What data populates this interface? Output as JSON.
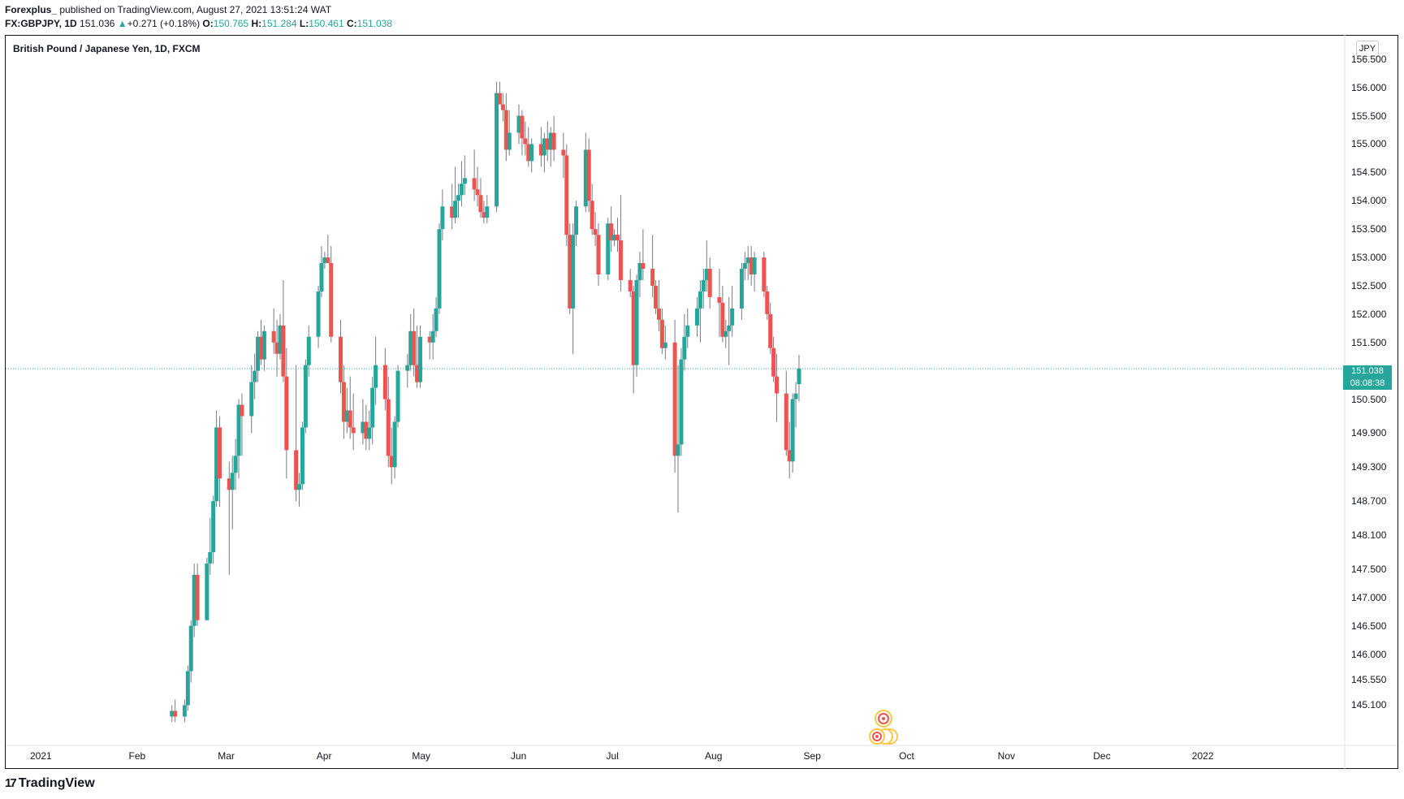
{
  "header": {
    "author": "Forexplus_",
    "published": "published on TradingView.com, August 27, 2021 13:51:24 WAT",
    "symbol": "FX:GBPJPY, 1D",
    "last": "151.036",
    "change_arrow": "▲",
    "change": "+0.271 (+0.18%)",
    "o_label": "O:",
    "o_value": "150.765",
    "h_label": "H:",
    "h_value": "151.284",
    "l_label": "L:",
    "l_value": "150.461",
    "c_label": "C:",
    "c_value": "151.038"
  },
  "currency_button": "JPY",
  "price_tag": {
    "price": "151.038",
    "countdown": "08:08:38"
  },
  "footer": {
    "logo_mark": "17",
    "brand": "TradingView"
  },
  "colors": {
    "up": "#26a69a",
    "down": "#ef5350",
    "wick": "#787b86",
    "price_line": "#26a69a"
  },
  "chart_data": {
    "type": "candlestick",
    "title": "British Pound / Japanese Yen, 1D, FXCM",
    "y_axis_labels": [
      "156.500",
      "156.000",
      "155.500",
      "155.000",
      "154.500",
      "154.000",
      "153.500",
      "153.000",
      "152.500",
      "152.000",
      "151.500",
      "150.500",
      "149.900",
      "149.300",
      "148.700",
      "148.100",
      "147.500",
      "147.000",
      "146.500",
      "146.000",
      "145.550",
      "145.100"
    ],
    "ylim": [
      145.0,
      156.6
    ],
    "x_axis_labels": [
      "2021",
      "Feb",
      "Mar",
      "Apr",
      "May",
      "Jun",
      "Jul",
      "Aug",
      "Sep",
      "Oct",
      "Nov",
      "Dec",
      "2022"
    ],
    "current_price": 151.038,
    "grid": false,
    "candles": [
      [
        "2021-02-11",
        144.9,
        145.1,
        144.8,
        145.0
      ],
      [
        "2021-02-12",
        145.0,
        145.2,
        144.8,
        144.9
      ],
      [
        "2021-02-15",
        144.9,
        145.2,
        144.8,
        145.1
      ],
      [
        "2021-02-16",
        145.1,
        145.8,
        145.0,
        145.7
      ],
      [
        "2021-02-17",
        145.7,
        146.6,
        145.5,
        146.5
      ],
      [
        "2021-02-18",
        146.5,
        147.6,
        146.3,
        147.4
      ],
      [
        "2021-02-19",
        147.4,
        147.6,
        146.5,
        146.6
      ],
      [
        "2021-02-22",
        146.6,
        147.7,
        146.6,
        147.6
      ],
      [
        "2021-02-23",
        147.6,
        148.4,
        147.4,
        147.8
      ],
      [
        "2021-02-24",
        147.8,
        148.8,
        147.6,
        148.7
      ],
      [
        "2021-02-25",
        148.7,
        150.3,
        148.6,
        150.0
      ],
      [
        "2021-02-26",
        150.0,
        150.2,
        148.6,
        149.1
      ],
      [
        "2021-03-01",
        149.1,
        149.4,
        147.4,
        148.9
      ],
      [
        "2021-03-02",
        148.9,
        149.5,
        148.2,
        149.2
      ],
      [
        "2021-03-03",
        149.2,
        149.8,
        148.9,
        149.5
      ],
      [
        "2021-03-04",
        149.5,
        150.5,
        149.1,
        150.4
      ],
      [
        "2021-03-05",
        150.4,
        150.6,
        149.5,
        150.2
      ],
      [
        "2021-03-08",
        150.2,
        151.1,
        149.9,
        150.8
      ],
      [
        "2021-03-09",
        150.8,
        151.3,
        150.5,
        151.0
      ],
      [
        "2021-03-10",
        151.0,
        151.7,
        150.8,
        151.6
      ],
      [
        "2021-03-11",
        151.6,
        151.9,
        151.1,
        151.2
      ],
      [
        "2021-03-12",
        151.2,
        151.8,
        151.0,
        151.7
      ],
      [
        "2021-03-15",
        151.7,
        152.1,
        151.3,
        151.5
      ],
      [
        "2021-03-16",
        151.5,
        151.9,
        150.9,
        151.3
      ],
      [
        "2021-03-17",
        151.3,
        152.0,
        151.2,
        151.8
      ],
      [
        "2021-03-18",
        151.8,
        152.6,
        150.8,
        150.9
      ],
      [
        "2021-03-19",
        150.9,
        151.4,
        149.1,
        149.6
      ],
      [
        "2021-03-22",
        149.6,
        151.1,
        148.7,
        148.9
      ],
      [
        "2021-03-23",
        148.9,
        149.2,
        148.6,
        149.0
      ],
      [
        "2021-03-24",
        149.0,
        150.1,
        148.9,
        150.0
      ],
      [
        "2021-03-25",
        150.0,
        151.2,
        149.9,
        151.1
      ],
      [
        "2021-03-26",
        151.1,
        151.8,
        150.9,
        151.6
      ],
      [
        "2021-03-29",
        151.6,
        152.5,
        151.4,
        152.4
      ],
      [
        "2021-03-30",
        152.4,
        153.2,
        152.3,
        152.9
      ],
      [
        "2021-03-31",
        152.9,
        153.1,
        152.8,
        153.0
      ],
      [
        "2021-04-01",
        153.0,
        153.4,
        152.9,
        152.9
      ],
      [
        "2021-04-02",
        152.9,
        153.2,
        151.5,
        151.6
      ],
      [
        "2021-04-05",
        151.6,
        151.9,
        150.6,
        150.8
      ],
      [
        "2021-04-06",
        150.8,
        151.1,
        149.8,
        150.1
      ],
      [
        "2021-04-07",
        150.1,
        150.7,
        149.9,
        150.3
      ],
      [
        "2021-04-08",
        150.3,
        150.9,
        149.8,
        150.0
      ],
      [
        "2021-04-09",
        150.0,
        150.6,
        149.6,
        149.9
      ],
      [
        "2021-04-12",
        149.9,
        150.5,
        149.7,
        150.1
      ],
      [
        "2021-04-13",
        150.1,
        150.4,
        149.6,
        149.8
      ],
      [
        "2021-04-14",
        149.8,
        150.3,
        149.6,
        150.0
      ],
      [
        "2021-04-15",
        150.0,
        150.9,
        149.7,
        150.7
      ],
      [
        "2021-04-16",
        150.7,
        151.6,
        150.4,
        151.1
      ],
      [
        "2021-04-19",
        151.1,
        151.4,
        150.3,
        150.5
      ],
      [
        "2021-04-20",
        150.5,
        150.9,
        149.3,
        149.5
      ],
      [
        "2021-04-21",
        149.5,
        150.0,
        149.0,
        149.3
      ],
      [
        "2021-04-22",
        149.3,
        150.2,
        149.1,
        150.1
      ],
      [
        "2021-04-23",
        150.1,
        151.1,
        150.0,
        151.0
      ],
      [
        "2021-04-26",
        151.0,
        151.3,
        150.7,
        151.1
      ],
      [
        "2021-04-27",
        151.1,
        152.0,
        151.0,
        151.7
      ],
      [
        "2021-04-28",
        151.7,
        152.1,
        150.9,
        151.1
      ],
      [
        "2021-04-29",
        151.1,
        151.8,
        150.7,
        150.8
      ],
      [
        "2021-04-30",
        150.8,
        151.8,
        150.7,
        151.6
      ],
      [
        "2021-05-03",
        151.6,
        151.7,
        151.2,
        151.5
      ],
      [
        "2021-05-04",
        151.5,
        152.0,
        151.2,
        151.7
      ],
      [
        "2021-05-05",
        151.7,
        152.3,
        151.6,
        152.1
      ],
      [
        "2021-05-06",
        152.1,
        153.6,
        152.0,
        153.5
      ],
      [
        "2021-05-07",
        153.5,
        154.2,
        153.3,
        153.9
      ],
      [
        "2021-05-10",
        153.9,
        154.3,
        153.5,
        153.7
      ],
      [
        "2021-05-11",
        153.7,
        154.6,
        153.6,
        154.0
      ],
      [
        "2021-05-12",
        154.0,
        154.3,
        153.7,
        154.1
      ],
      [
        "2021-05-13",
        154.1,
        154.7,
        153.9,
        154.3
      ],
      [
        "2021-05-14",
        154.3,
        154.8,
        154.1,
        154.4
      ],
      [
        "2021-05-17",
        154.4,
        154.9,
        154.0,
        154.2
      ],
      [
        "2021-05-18",
        154.2,
        154.6,
        153.9,
        154.1
      ],
      [
        "2021-05-19",
        154.1,
        154.4,
        153.7,
        153.8
      ],
      [
        "2021-05-20",
        153.8,
        154.0,
        153.6,
        153.7
      ],
      [
        "2021-05-21",
        153.7,
        154.1,
        153.6,
        153.9
      ],
      [
        "2021-05-24",
        153.9,
        156.1,
        153.8,
        155.9
      ],
      [
        "2021-05-25",
        155.9,
        156.1,
        155.7,
        155.7
      ],
      [
        "2021-05-26",
        155.7,
        155.9,
        155.4,
        155.6
      ],
      [
        "2021-05-27",
        155.6,
        155.9,
        154.7,
        154.9
      ],
      [
        "2021-05-28",
        154.9,
        155.6,
        154.8,
        155.2
      ],
      [
        "2021-05-31",
        155.2,
        155.7,
        155.0,
        155.5
      ],
      [
        "2021-06-01",
        155.5,
        155.6,
        154.8,
        155.1
      ],
      [
        "2021-06-02",
        155.1,
        155.4,
        154.8,
        155.0
      ],
      [
        "2021-06-03",
        155.0,
        155.3,
        154.6,
        154.7
      ],
      [
        "2021-06-04",
        154.7,
        155.1,
        154.5,
        155.0
      ],
      [
        "2021-06-07",
        155.0,
        155.3,
        154.6,
        154.8
      ],
      [
        "2021-06-08",
        154.8,
        155.2,
        154.5,
        155.1
      ],
      [
        "2021-06-09",
        155.1,
        155.4,
        154.7,
        154.9
      ],
      [
        "2021-06-10",
        154.9,
        155.3,
        154.6,
        155.2
      ],
      [
        "2021-06-11",
        155.2,
        155.5,
        154.7,
        154.9
      ],
      [
        "2021-06-14",
        154.9,
        155.2,
        154.4,
        154.8
      ],
      [
        "2021-06-15",
        154.8,
        155.0,
        153.2,
        153.4
      ],
      [
        "2021-06-16",
        153.4,
        153.6,
        152.0,
        152.1
      ],
      [
        "2021-06-17",
        152.1,
        153.6,
        151.3,
        153.4
      ],
      [
        "2021-06-18",
        153.4,
        154.0,
        153.2,
        153.9
      ],
      [
        "2021-06-21",
        153.9,
        155.2,
        153.8,
        154.9
      ],
      [
        "2021-06-22",
        154.9,
        155.1,
        153.8,
        154.0
      ],
      [
        "2021-06-23",
        154.0,
        154.3,
        153.4,
        153.5
      ],
      [
        "2021-06-24",
        153.5,
        153.8,
        153.2,
        153.4
      ],
      [
        "2021-06-25",
        153.4,
        153.6,
        152.5,
        152.7
      ],
      [
        "2021-06-28",
        152.7,
        153.7,
        152.6,
        153.6
      ],
      [
        "2021-06-29",
        153.6,
        153.9,
        153.1,
        153.3
      ],
      [
        "2021-06-30",
        153.3,
        153.5,
        153.2,
        153.4
      ],
      [
        "2021-07-01",
        153.4,
        153.7,
        153.1,
        153.3
      ],
      [
        "2021-07-02",
        153.3,
        154.1,
        152.4,
        152.6
      ],
      [
        "2021-07-05",
        152.6,
        152.8,
        152.3,
        152.4
      ],
      [
        "2021-07-06",
        152.4,
        152.5,
        150.6,
        151.1
      ],
      [
        "2021-07-07",
        151.1,
        152.7,
        150.9,
        152.6
      ],
      [
        "2021-07-08",
        152.6,
        153.1,
        152.3,
        152.9
      ],
      [
        "2021-07-09",
        152.9,
        153.5,
        152.6,
        152.8
      ],
      [
        "2021-07-12",
        152.8,
        153.4,
        152.3,
        152.5
      ],
      [
        "2021-07-13",
        152.5,
        152.6,
        152.0,
        152.1
      ],
      [
        "2021-07-14",
        152.1,
        152.6,
        151.7,
        151.9
      ],
      [
        "2021-07-15",
        151.9,
        152.1,
        151.3,
        151.4
      ],
      [
        "2021-07-16",
        151.4,
        151.8,
        151.2,
        151.5
      ],
      [
        "2021-07-19",
        151.5,
        151.9,
        149.2,
        149.5
      ],
      [
        "2021-07-20",
        149.5,
        151.1,
        148.5,
        149.7
      ],
      [
        "2021-07-21",
        149.7,
        151.4,
        149.5,
        151.2
      ],
      [
        "2021-07-22",
        151.2,
        152.0,
        151.0,
        151.6
      ],
      [
        "2021-07-23",
        151.6,
        152.1,
        151.4,
        151.8
      ],
      [
        "2021-07-26",
        151.8,
        152.3,
        151.6,
        152.1
      ],
      [
        "2021-07-27",
        152.1,
        152.6,
        151.5,
        152.4
      ],
      [
        "2021-07-28",
        152.4,
        152.8,
        152.1,
        152.6
      ],
      [
        "2021-07-29",
        152.6,
        153.3,
        152.4,
        152.8
      ],
      [
        "2021-07-30",
        152.8,
        153.0,
        152.1,
        152.3
      ],
      [
        "2021-08-02",
        152.3,
        152.8,
        151.6,
        152.2
      ],
      [
        "2021-08-03",
        152.2,
        152.5,
        151.5,
        151.6
      ],
      [
        "2021-08-04",
        151.6,
        151.9,
        151.4,
        151.7
      ],
      [
        "2021-08-05",
        151.7,
        152.3,
        151.1,
        151.8
      ],
      [
        "2021-08-06",
        151.8,
        152.5,
        151.6,
        152.1
      ],
      [
        "2021-08-09",
        152.1,
        152.9,
        151.9,
        152.8
      ],
      [
        "2021-08-10",
        152.8,
        153.1,
        152.6,
        152.9
      ],
      [
        "2021-08-11",
        152.9,
        153.2,
        152.6,
        153.0
      ],
      [
        "2021-08-12",
        153.0,
        153.2,
        152.5,
        152.7
      ],
      [
        "2021-08-13",
        152.7,
        153.1,
        152.4,
        153.0
      ],
      [
        "2021-08-16",
        153.0,
        153.1,
        152.3,
        152.4
      ],
      [
        "2021-08-17",
        152.4,
        152.5,
        151.9,
        152.0
      ],
      [
        "2021-08-18",
        152.0,
        152.2,
        151.3,
        151.4
      ],
      [
        "2021-08-19",
        151.4,
        151.6,
        150.8,
        150.9
      ],
      [
        "2021-08-20",
        150.9,
        151.3,
        150.1,
        150.6
      ],
      [
        "2021-08-23",
        150.6,
        151.0,
        149.5,
        149.6
      ],
      [
        "2021-08-24",
        149.6,
        150.1,
        149.1,
        149.4
      ],
      [
        "2021-08-25",
        149.4,
        150.6,
        149.2,
        150.5
      ],
      [
        "2021-08-26",
        150.5,
        150.8,
        150.0,
        150.6
      ],
      [
        "2021-08-27",
        150.765,
        151.284,
        150.461,
        151.038
      ]
    ]
  }
}
